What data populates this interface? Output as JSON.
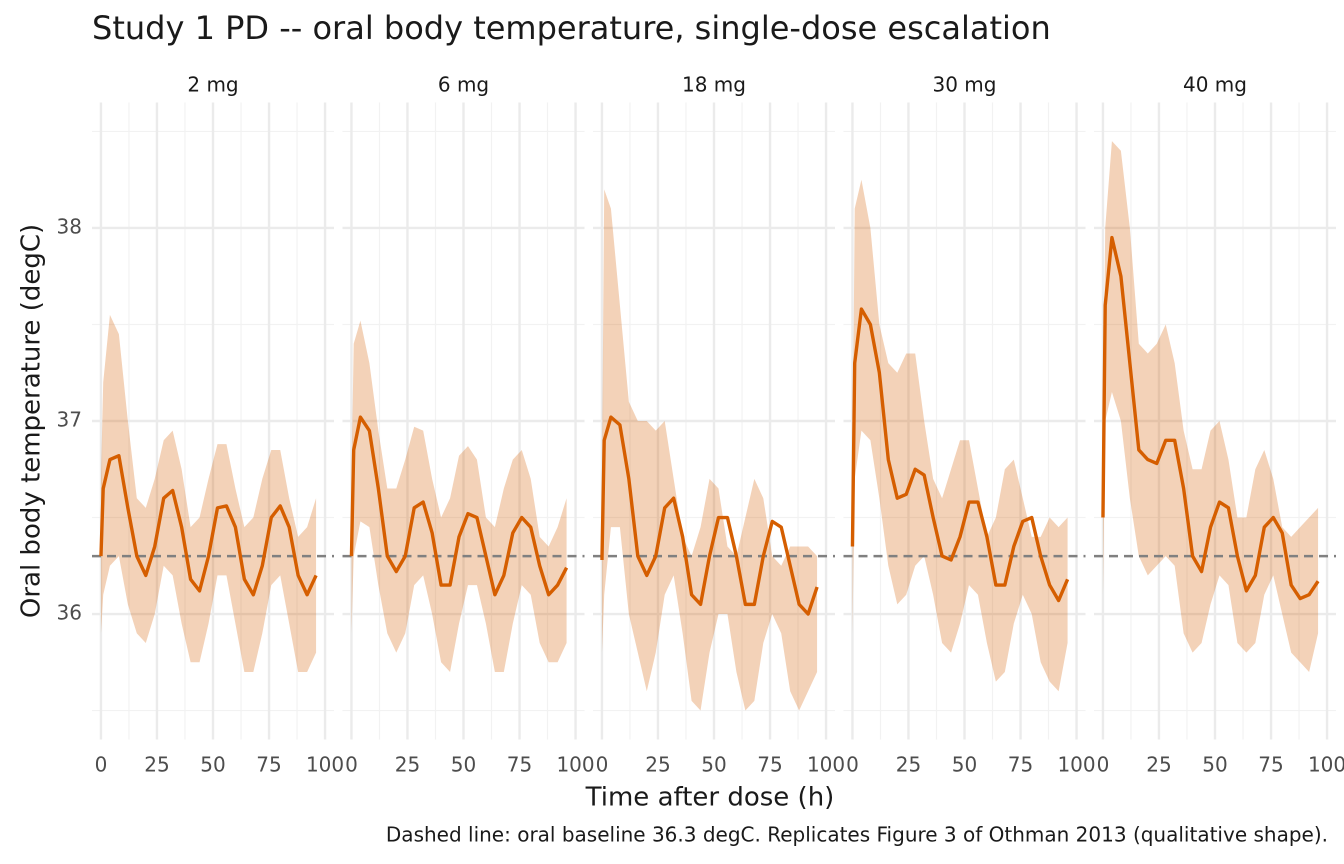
{
  "chart_data": {
    "type": "line",
    "title": "Study 1 PD -- oral body temperature, single-dose escalation",
    "x_label": "Time after dose (h)",
    "y_label": "Oral body temperature (degC)",
    "caption": "Dashed line: oral baseline 36.3 degC. Replicates Figure 3 of Othman 2013 (qualitative shape).",
    "xlim": [
      -4,
      104
    ],
    "xticks": [
      0,
      25,
      50,
      75,
      100
    ],
    "xminor_ticks": [
      12.5,
      37.5,
      62.5,
      87.5
    ],
    "ylim": [
      35.35,
      38.65
    ],
    "yticks": [
      36,
      37,
      38
    ],
    "yminor_ticks": [
      35.5,
      36.5,
      37.5,
      38.5
    ],
    "grid": true,
    "color": "#d55e00",
    "ribbon_opacity": 0.28,
    "baseline": {
      "value": 36.3,
      "color": "#808080"
    },
    "x": [
      0,
      1,
      4,
      8,
      12,
      16,
      20,
      24,
      28,
      32,
      36,
      40,
      44,
      48,
      52,
      56,
      60,
      64,
      68,
      72,
      76,
      80,
      84,
      88,
      92,
      96
    ],
    "facets": [
      {
        "name": "2 mg",
        "values": [
          36.3,
          36.65,
          36.8,
          36.82,
          36.55,
          36.3,
          36.2,
          36.35,
          36.6,
          36.64,
          36.45,
          36.18,
          36.12,
          36.3,
          36.55,
          36.56,
          36.45,
          36.18,
          36.1,
          36.25,
          36.5,
          36.56,
          36.45,
          36.2,
          36.1,
          36.2
        ],
        "lower": [
          35.9,
          36.1,
          36.25,
          36.3,
          36.05,
          35.9,
          35.85,
          36.0,
          36.25,
          36.2,
          35.95,
          35.75,
          35.75,
          35.95,
          36.2,
          36.2,
          35.95,
          35.7,
          35.7,
          35.9,
          36.15,
          36.2,
          35.95,
          35.7,
          35.7,
          35.8
        ],
        "upper": [
          36.7,
          37.2,
          37.55,
          37.45,
          37.0,
          36.6,
          36.55,
          36.7,
          36.9,
          36.95,
          36.75,
          36.45,
          36.5,
          36.7,
          36.88,
          36.88,
          36.65,
          36.45,
          36.5,
          36.7,
          36.85,
          36.85,
          36.6,
          36.4,
          36.45,
          36.6
        ]
      },
      {
        "name": "6 mg",
        "values": [
          36.3,
          36.85,
          37.02,
          36.95,
          36.65,
          36.3,
          36.22,
          36.3,
          36.55,
          36.58,
          36.42,
          36.15,
          36.15,
          36.4,
          36.52,
          36.5,
          36.3,
          36.1,
          36.2,
          36.42,
          36.5,
          36.45,
          36.25,
          36.1,
          36.15,
          36.24
        ],
        "lower": [
          35.9,
          36.3,
          36.48,
          36.45,
          36.15,
          35.9,
          35.8,
          35.9,
          36.15,
          36.2,
          36.0,
          35.75,
          35.7,
          35.95,
          36.15,
          36.15,
          35.95,
          35.7,
          35.7,
          35.95,
          36.15,
          36.1,
          35.85,
          35.75,
          35.75,
          35.85
        ],
        "upper": [
          36.7,
          37.4,
          37.52,
          37.3,
          36.95,
          36.65,
          36.65,
          36.8,
          36.97,
          36.95,
          36.7,
          36.5,
          36.6,
          36.82,
          36.87,
          36.8,
          36.5,
          36.45,
          36.65,
          36.8,
          36.85,
          36.7,
          36.4,
          36.35,
          36.45,
          36.6
        ]
      },
      {
        "name": "18 mg",
        "values": [
          36.28,
          36.9,
          37.02,
          36.98,
          36.7,
          36.3,
          36.2,
          36.3,
          36.55,
          36.6,
          36.4,
          36.1,
          36.05,
          36.3,
          36.5,
          36.5,
          36.3,
          36.05,
          36.05,
          36.3,
          36.48,
          36.45,
          36.25,
          36.05,
          36.0,
          36.14
        ],
        "lower": [
          35.8,
          36.1,
          36.45,
          36.45,
          36.0,
          35.8,
          35.6,
          35.8,
          36.1,
          36.2,
          35.9,
          35.55,
          35.5,
          35.8,
          36.0,
          36.0,
          35.7,
          35.5,
          35.55,
          35.85,
          36.0,
          35.9,
          35.6,
          35.5,
          35.6,
          35.7
        ],
        "upper": [
          36.7,
          38.2,
          38.1,
          37.6,
          37.1,
          37.0,
          37.0,
          36.95,
          37.0,
          36.7,
          36.4,
          36.3,
          36.45,
          36.7,
          36.65,
          36.35,
          36.3,
          36.5,
          36.7,
          36.6,
          36.3,
          36.25,
          36.35,
          36.35,
          36.35,
          36.3
        ]
      },
      {
        "name": "30 mg",
        "values": [
          36.35,
          37.3,
          37.58,
          37.5,
          37.25,
          36.8,
          36.6,
          36.62,
          36.75,
          36.72,
          36.5,
          36.3,
          36.28,
          36.4,
          36.58,
          36.58,
          36.4,
          36.15,
          36.15,
          36.35,
          36.48,
          36.5,
          36.3,
          36.15,
          36.07,
          36.18
        ],
        "lower": [
          35.9,
          36.7,
          36.95,
          36.9,
          36.6,
          36.25,
          36.05,
          36.1,
          36.25,
          36.3,
          36.1,
          35.85,
          35.8,
          35.95,
          36.15,
          36.1,
          35.85,
          35.65,
          35.7,
          35.95,
          36.1,
          36.0,
          35.75,
          35.65,
          35.6,
          35.85
        ],
        "upper": [
          36.7,
          38.1,
          38.25,
          38.0,
          37.5,
          37.3,
          37.25,
          37.35,
          37.35,
          37.0,
          36.7,
          36.6,
          36.75,
          36.9,
          36.9,
          36.65,
          36.4,
          36.5,
          36.75,
          36.8,
          36.6,
          36.4,
          36.4,
          36.5,
          36.45,
          36.5
        ]
      },
      {
        "name": "40 mg",
        "values": [
          36.5,
          37.6,
          37.95,
          37.75,
          37.3,
          36.85,
          36.8,
          36.78,
          36.9,
          36.9,
          36.65,
          36.3,
          36.22,
          36.45,
          36.58,
          36.55,
          36.3,
          36.12,
          36.2,
          36.45,
          36.5,
          36.42,
          36.15,
          36.08,
          36.1,
          36.17
        ],
        "lower": [
          36.1,
          37.0,
          37.15,
          37.0,
          36.6,
          36.3,
          36.2,
          36.25,
          36.3,
          36.25,
          35.9,
          35.8,
          35.85,
          36.05,
          36.2,
          36.15,
          35.85,
          35.8,
          35.85,
          36.1,
          36.2,
          36.0,
          35.8,
          35.75,
          35.7,
          35.9
        ],
        "upper": [
          36.9,
          38.0,
          38.45,
          38.4,
          38.0,
          37.4,
          37.35,
          37.4,
          37.5,
          37.3,
          36.95,
          36.75,
          36.75,
          36.95,
          37.0,
          36.8,
          36.5,
          36.5,
          36.75,
          36.85,
          36.7,
          36.45,
          36.4,
          36.45,
          36.5,
          36.55
        ]
      }
    ]
  }
}
